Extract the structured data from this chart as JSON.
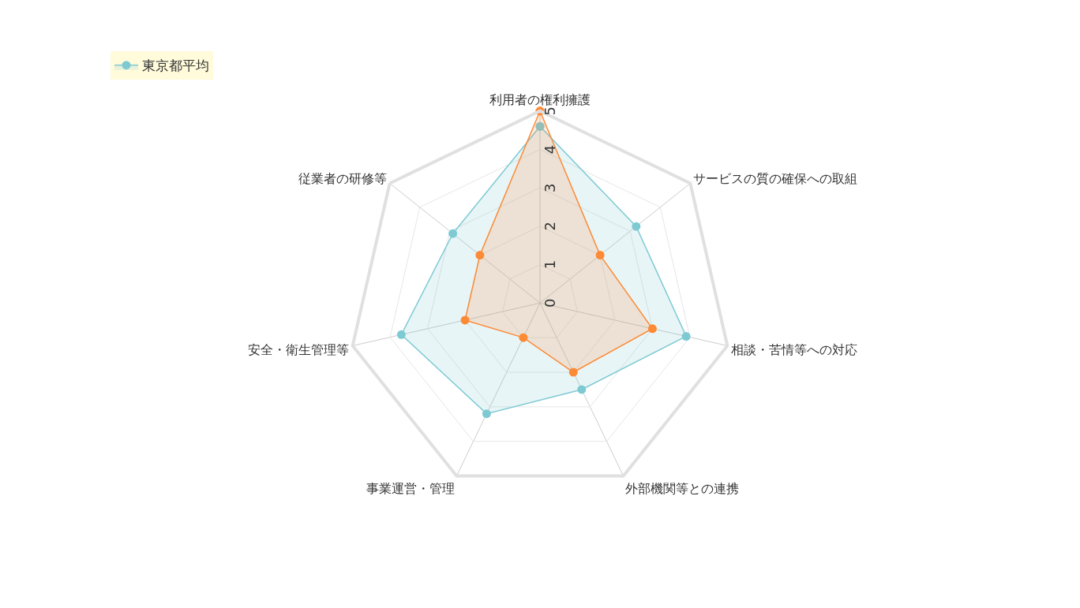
{
  "chart_data": {
    "type": "radar",
    "categories": [
      "利用者の権利擁護",
      "サービスの質の確保への取組",
      "相談・苦情等への対応",
      "外部機関等との連携",
      "事業運営・管理",
      "安全・衛生管理等",
      "従業者の研修等"
    ],
    "series": [
      {
        "name": "東京都平均",
        "color": "#7ecad3",
        "values": [
          4.6,
          3.2,
          3.9,
          2.5,
          3.2,
          3.7,
          2.9
        ]
      },
      {
        "color": "#fd8a35",
        "values": [
          5,
          2,
          3,
          2,
          1,
          2,
          2
        ]
      }
    ],
    "ylim": [
      0,
      5
    ],
    "yticks": [
      0,
      1,
      2,
      3,
      4,
      5
    ],
    "grid": true,
    "legend": "top left",
    "marker": "circle"
  }
}
